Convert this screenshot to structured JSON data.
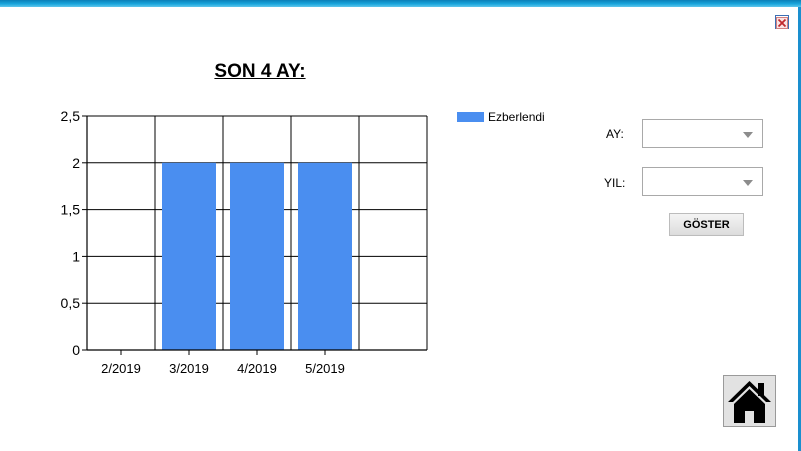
{
  "window": {
    "close_icon": "close-x-icon",
    "home_icon": "home-icon"
  },
  "title": "SON 4 AY:",
  "chart_data": {
    "type": "bar",
    "title": "SON 4 AY:",
    "categories": [
      "2/2019",
      "3/2019",
      "4/2019",
      "5/2019"
    ],
    "series": [
      {
        "name": "Ezberlendi",
        "values": [
          0,
          2,
          2,
          2
        ],
        "color": "#4a8ef0"
      }
    ],
    "y_ticks": [
      "0",
      "0,5",
      "1",
      "1,5",
      "2",
      "2,5"
    ],
    "y_tick_values": [
      0,
      0.5,
      1,
      1.5,
      2,
      2.5
    ],
    "ylim": [
      0,
      2.5
    ],
    "xlabel": "",
    "ylabel": "",
    "grid": true,
    "legend": "right"
  },
  "form": {
    "month_label": "AY:",
    "month_value": "",
    "year_label": "YIL:",
    "year_value": "",
    "show_button": "GÖSTER"
  },
  "colors": {
    "bar": "#4a8ef0",
    "title_bar": "#19a6dc"
  }
}
